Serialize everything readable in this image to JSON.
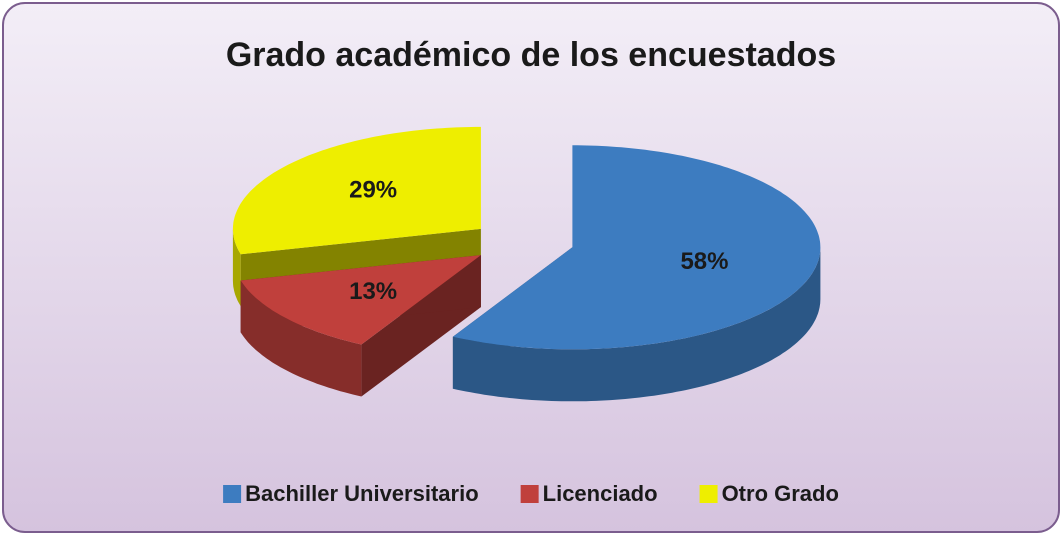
{
  "chart_data": {
    "type": "pie3d",
    "title": "Grado académico de los encuestados",
    "categories": [
      "Bachiller Universitario",
      "Licenciado",
      "Otro Grado"
    ],
    "values": [
      58,
      13,
      29
    ],
    "value_labels": [
      "58%",
      "13%",
      "29%"
    ],
    "colors": [
      "#3d7cc0",
      "#c0403c",
      "#eeee00"
    ],
    "legend": "bottom"
  }
}
